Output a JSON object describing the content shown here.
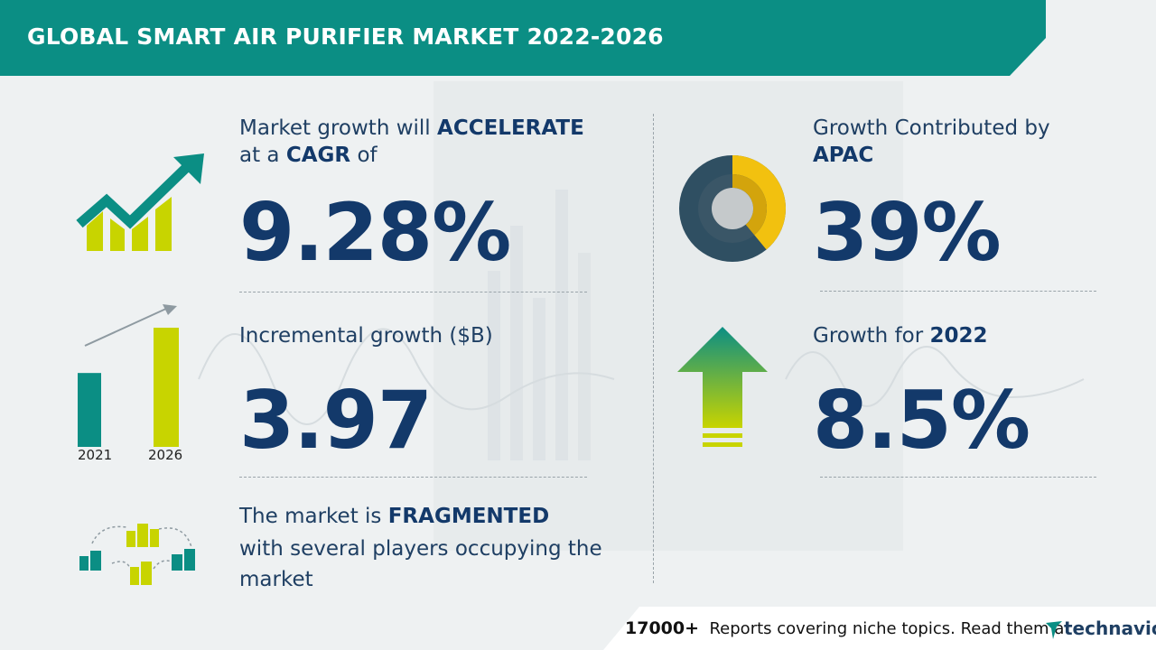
{
  "header": {
    "title": "GLOBAL SMART AIR PURIFIER MARKET 2022-2026"
  },
  "cagr": {
    "line1_prefix": "Market growth will",
    "line1_emph": "ACCELERATE",
    "line2_prefix": "at a",
    "line2_emph": "CAGR",
    "line2_suffix": "of",
    "value": "9.28%"
  },
  "incremental": {
    "label": "Incremental growth ($B)",
    "value": "3.97",
    "bar_years": [
      "2021",
      "2026"
    ],
    "bar_values": [
      0.62,
      1.0
    ]
  },
  "fragmented": {
    "line1_prefix": "The market is",
    "line1_emph": "FRAGMENTED",
    "line2": "with several players occupying the",
    "line3": "market"
  },
  "apac": {
    "line1": "Growth Contributed by",
    "region": "APAC",
    "value": "39%",
    "share": 0.39
  },
  "yoy": {
    "label_prefix": "Growth for",
    "year": "2022",
    "value": "8.5%"
  },
  "footer": {
    "count": "17000+",
    "text": "Reports covering niche topics. Read them at",
    "brand": "technavio"
  },
  "colors": {
    "teal": "#0b8e84",
    "navy": "#13396a",
    "lime": "#c8d400",
    "gold": "#f2c10f",
    "slate": "#2f4f62"
  }
}
